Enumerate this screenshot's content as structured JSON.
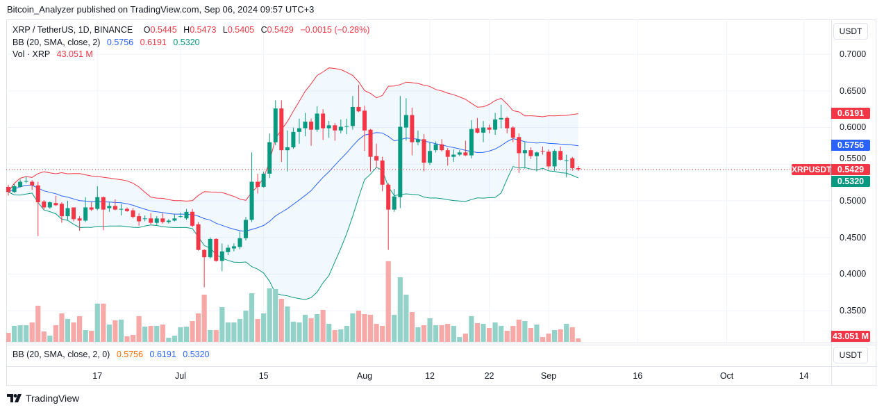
{
  "header": {
    "published": "Bitcoin_Analyzer published on TradingView.com, Sep 06, 2024 09:57 UTC+3"
  },
  "legend": {
    "symbol": "XRP / TetherUS, 1D, BINANCE",
    "o_label": "O",
    "o": "0.5445",
    "h_label": "H",
    "h": "0.5473",
    "l_label": "L",
    "l": "0.5405",
    "c_label": "C",
    "c": "0.5429",
    "change": "−0.0015 (−0.28%)",
    "bb_label": "BB (20, SMA, close, 2)",
    "bb_basis": "0.5756",
    "bb_upper": "0.6191",
    "bb_lower": "0.5320",
    "vol_label": "Vol · XRP",
    "vol": "43.051 M"
  },
  "bb_pane": {
    "label": "BB (20, SMA, close, 2, 0)",
    "basis": "0.5756",
    "upper": "0.6191",
    "lower": "0.5320",
    "currency_button": "USDT"
  },
  "price_axis": {
    "currency_button": "USDT",
    "ticks": [
      "0.7000",
      "0.6500",
      "0.6000",
      "0.5500",
      "0.5000",
      "0.4500",
      "0.4000",
      "0.3500"
    ],
    "tags": [
      {
        "value": "0.6191",
        "color": "#f23645"
      },
      {
        "value": "0.5756",
        "color": "#2962ff"
      },
      {
        "value": "0.5429",
        "color": "#f23645",
        "symbol": "XRPUSDT"
      },
      {
        "value": "0.5320",
        "color": "#089981"
      }
    ],
    "volume_tag": {
      "value": "43.051 M",
      "color": "#f23645"
    }
  },
  "time_axis": [
    {
      "label": "17",
      "date": "2024-06-17"
    },
    {
      "label": "Jul",
      "date": "2024-07-01"
    },
    {
      "label": "15",
      "date": "2024-07-15"
    },
    {
      "label": "Aug",
      "date": "2024-08-01"
    },
    {
      "label": "12",
      "date": "2024-08-12"
    },
    {
      "label": "22",
      "date": "2024-08-22"
    },
    {
      "label": "Sep",
      "date": "2024-09-01"
    },
    {
      "label": "16",
      "date": "2024-09-16"
    },
    {
      "label": "Oct",
      "date": "2024-10-01"
    },
    {
      "label": "14",
      "date": "2024-10-14"
    }
  ],
  "footer": {
    "logo_text": "TradingView"
  },
  "colors": {
    "up": "#089981",
    "down": "#f23645",
    "bb_basis": "#2962ff",
    "bb_upper": "#f23645",
    "bb_lower": "#089981",
    "vol_up": "#92d2c8",
    "vol_down": "#f7a9a7",
    "bb_pane_basis": "#ff6d00",
    "bb_pane_bands": "#2962ff"
  },
  "chart_data": {
    "type": "candlestick",
    "symbol": "XRPUSDT",
    "interval": "1D",
    "ylim": [
      0.3066,
      0.7474
    ],
    "grid": true,
    "last_price": 0.5429,
    "indicators": [
      {
        "name": "BB",
        "length": 20,
        "source": "close",
        "stddev": 2
      },
      {
        "name": "Vol",
        "unit": "M"
      }
    ],
    "columns": [
      "date",
      "open",
      "high",
      "low",
      "close",
      "volume_M"
    ],
    "candles": [
      [
        "2024-06-02",
        0.519,
        0.522,
        0.507,
        0.512,
        112
      ],
      [
        "2024-06-03",
        0.512,
        0.523,
        0.511,
        0.52,
        198
      ],
      [
        "2024-06-04",
        0.519,
        0.529,
        0.518,
        0.526,
        207
      ],
      [
        "2024-06-05",
        0.526,
        0.533,
        0.524,
        0.527,
        207
      ],
      [
        "2024-06-06",
        0.526,
        0.528,
        0.515,
        0.521,
        241
      ],
      [
        "2024-06-07",
        0.521,
        0.526,
        0.452,
        0.498,
        448
      ],
      [
        "2024-06-08",
        0.499,
        0.501,
        0.488,
        0.491,
        129
      ],
      [
        "2024-06-09",
        0.491,
        0.499,
        0.489,
        0.498,
        77
      ],
      [
        "2024-06-10",
        0.497,
        0.507,
        0.493,
        0.494,
        207
      ],
      [
        "2024-06-11",
        0.496,
        0.498,
        0.47,
        0.479,
        353
      ],
      [
        "2024-06-12",
        0.479,
        0.5,
        0.474,
        0.49,
        284
      ],
      [
        "2024-06-13",
        0.491,
        0.491,
        0.472,
        0.475,
        241
      ],
      [
        "2024-06-14",
        0.476,
        0.479,
        0.459,
        0.473,
        319
      ],
      [
        "2024-06-15",
        0.473,
        0.505,
        0.471,
        0.491,
        146
      ],
      [
        "2024-06-16",
        0.491,
        0.498,
        0.486,
        0.488,
        138
      ],
      [
        "2024-06-17",
        0.489,
        0.52,
        0.487,
        0.505,
        474
      ],
      [
        "2024-06-18",
        0.505,
        0.506,
        0.46,
        0.488,
        474
      ],
      [
        "2024-06-19",
        0.49,
        0.498,
        0.485,
        0.493,
        215
      ],
      [
        "2024-06-20",
        0.493,
        0.502,
        0.487,
        0.488,
        267
      ],
      [
        "2024-06-21",
        0.488,
        0.496,
        0.48,
        0.489,
        276
      ],
      [
        "2024-06-22",
        0.489,
        0.491,
        0.485,
        0.486,
        69
      ],
      [
        "2024-06-23",
        0.487,
        0.49,
        0.476,
        0.478,
        86
      ],
      [
        "2024-06-24",
        0.479,
        0.483,
        0.466,
        0.472,
        319
      ],
      [
        "2024-06-25",
        0.475,
        0.48,
        0.472,
        0.476,
        189
      ],
      [
        "2024-06-26",
        0.476,
        0.483,
        0.468,
        0.47,
        198
      ],
      [
        "2024-06-27",
        0.47,
        0.479,
        0.467,
        0.476,
        198
      ],
      [
        "2024-06-28",
        0.476,
        0.483,
        0.469,
        0.471,
        215
      ],
      [
        "2024-06-29",
        0.471,
        0.475,
        0.469,
        0.473,
        52
      ],
      [
        "2024-06-30",
        0.473,
        0.482,
        0.472,
        0.476,
        77
      ],
      [
        "2024-07-01",
        0.478,
        0.484,
        0.477,
        0.479,
        181
      ],
      [
        "2024-07-02",
        0.476,
        0.489,
        0.474,
        0.485,
        189
      ],
      [
        "2024-07-03",
        0.485,
        0.489,
        0.464,
        0.466,
        258
      ],
      [
        "2024-07-04",
        0.468,
        0.471,
        0.432,
        0.433,
        353
      ],
      [
        "2024-07-05",
        0.433,
        0.434,
        0.382,
        0.423,
        585
      ],
      [
        "2024-07-06",
        0.423,
        0.45,
        0.421,
        0.448,
        146
      ],
      [
        "2024-07-07",
        0.448,
        0.449,
        0.417,
        0.418,
        146
      ],
      [
        "2024-07-08",
        0.418,
        0.442,
        0.404,
        0.431,
        431
      ],
      [
        "2024-07-09",
        0.43,
        0.44,
        0.426,
        0.436,
        241
      ],
      [
        "2024-07-10",
        0.435,
        0.442,
        0.431,
        0.438,
        241
      ],
      [
        "2024-07-11",
        0.437,
        0.458,
        0.434,
        0.449,
        284
      ],
      [
        "2024-07-12",
        0.449,
        0.478,
        0.446,
        0.474,
        387
      ],
      [
        "2024-07-13",
        0.474,
        0.566,
        0.471,
        0.526,
        603
      ],
      [
        "2024-07-14",
        0.526,
        0.537,
        0.51,
        0.519,
        284
      ],
      [
        "2024-07-15",
        0.519,
        0.54,
        0.518,
        0.537,
        353
      ],
      [
        "2024-07-16",
        0.537,
        0.592,
        0.531,
        0.58,
        663
      ],
      [
        "2024-07-17",
        0.58,
        0.637,
        0.576,
        0.626,
        654
      ],
      [
        "2024-07-18",
        0.626,
        0.637,
        0.553,
        0.569,
        534
      ],
      [
        "2024-07-19",
        0.569,
        0.596,
        0.54,
        0.573,
        439
      ],
      [
        "2024-07-20",
        0.573,
        0.6,
        0.571,
        0.594,
        250
      ],
      [
        "2024-07-21",
        0.594,
        0.612,
        0.578,
        0.599,
        241
      ],
      [
        "2024-07-22",
        0.599,
        0.62,
        0.588,
        0.608,
        336
      ],
      [
        "2024-07-23",
        0.608,
        0.612,
        0.575,
        0.597,
        293
      ],
      [
        "2024-07-24",
        0.597,
        0.629,
        0.594,
        0.619,
        344
      ],
      [
        "2024-07-25",
        0.619,
        0.625,
        0.583,
        0.599,
        396
      ],
      [
        "2024-07-26",
        0.599,
        0.609,
        0.586,
        0.603,
        224
      ],
      [
        "2024-07-27",
        0.603,
        0.606,
        0.582,
        0.596,
        146
      ],
      [
        "2024-07-28",
        0.596,
        0.611,
        0.592,
        0.601,
        155
      ],
      [
        "2024-07-29",
        0.601,
        0.612,
        0.591,
        0.602,
        198
      ],
      [
        "2024-07-30",
        0.602,
        0.643,
        0.597,
        0.628,
        353
      ],
      [
        "2024-07-31",
        0.628,
        0.658,
        0.621,
        0.622,
        387
      ],
      [
        "2024-08-01",
        0.623,
        0.63,
        0.568,
        0.596,
        344
      ],
      [
        "2024-08-02",
        0.597,
        0.598,
        0.54,
        0.56,
        336
      ],
      [
        "2024-08-03",
        0.561,
        0.578,
        0.545,
        0.555,
        224
      ],
      [
        "2024-08-04",
        0.555,
        0.56,
        0.513,
        0.522,
        198
      ],
      [
        "2024-08-05",
        0.522,
        0.524,
        0.433,
        0.488,
        999
      ],
      [
        "2024-08-06",
        0.488,
        0.516,
        0.485,
        0.506,
        336
      ],
      [
        "2024-08-07",
        0.505,
        0.643,
        0.49,
        0.601,
        801
      ],
      [
        "2024-08-08",
        0.6,
        0.64,
        0.582,
        0.617,
        585
      ],
      [
        "2024-08-09",
        0.617,
        0.627,
        0.562,
        0.58,
        370
      ],
      [
        "2024-08-10",
        0.58,
        0.596,
        0.576,
        0.584,
        181
      ],
      [
        "2024-08-11",
        0.584,
        0.591,
        0.54,
        0.552,
        207
      ],
      [
        "2024-08-12",
        0.552,
        0.58,
        0.549,
        0.568,
        293
      ],
      [
        "2024-08-13",
        0.569,
        0.581,
        0.566,
        0.577,
        207
      ],
      [
        "2024-08-14",
        0.577,
        0.584,
        0.567,
        0.569,
        207
      ],
      [
        "2024-08-15",
        0.569,
        0.572,
        0.548,
        0.56,
        224
      ],
      [
        "2024-08-16",
        0.56,
        0.57,
        0.553,
        0.563,
        198
      ],
      [
        "2024-08-17",
        0.563,
        0.569,
        0.561,
        0.566,
        60
      ],
      [
        "2024-08-18",
        0.566,
        0.582,
        0.561,
        0.562,
        103
      ],
      [
        "2024-08-19",
        0.562,
        0.61,
        0.558,
        0.598,
        319
      ],
      [
        "2024-08-20",
        0.599,
        0.613,
        0.592,
        0.593,
        232
      ],
      [
        "2024-08-21",
        0.593,
        0.609,
        0.58,
        0.6,
        224
      ],
      [
        "2024-08-22",
        0.6,
        0.604,
        0.592,
        0.597,
        172
      ],
      [
        "2024-08-23",
        0.597,
        0.62,
        0.59,
        0.611,
        241
      ],
      [
        "2024-08-24",
        0.611,
        0.631,
        0.599,
        0.613,
        198
      ],
      [
        "2024-08-25",
        0.613,
        0.615,
        0.592,
        0.599,
        138
      ],
      [
        "2024-08-26",
        0.6,
        0.602,
        0.58,
        0.586,
        198
      ],
      [
        "2024-08-27",
        0.587,
        0.592,
        0.538,
        0.565,
        276
      ],
      [
        "2024-08-28",
        0.565,
        0.581,
        0.544,
        0.569,
        258
      ],
      [
        "2024-08-29",
        0.569,
        0.573,
        0.557,
        0.561,
        172
      ],
      [
        "2024-08-30",
        0.561,
        0.567,
        0.54,
        0.566,
        215
      ],
      [
        "2024-08-31",
        0.568,
        0.574,
        0.563,
        0.567,
        60
      ],
      [
        "2024-09-01",
        0.567,
        0.57,
        0.544,
        0.547,
        103
      ],
      [
        "2024-09-02",
        0.547,
        0.57,
        0.541,
        0.568,
        146
      ],
      [
        "2024-09-03",
        0.568,
        0.574,
        0.555,
        0.556,
        155
      ],
      [
        "2024-09-04",
        0.554,
        0.563,
        0.532,
        0.555,
        224
      ],
      [
        "2024-09-05",
        0.558,
        0.56,
        0.541,
        0.5445,
        181
      ],
      [
        "2024-09-06",
        0.5445,
        0.5473,
        0.5405,
        0.5429,
        43.051
      ]
    ]
  }
}
